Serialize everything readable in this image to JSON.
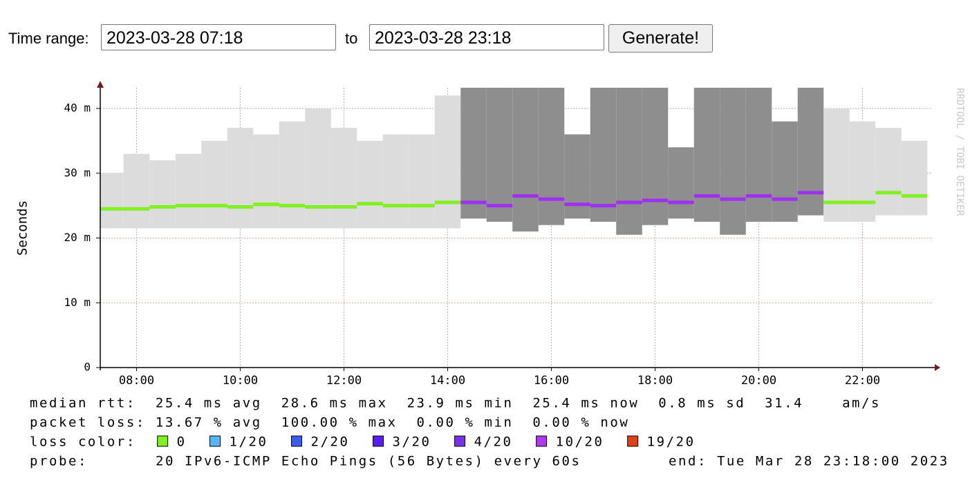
{
  "form": {
    "label": "Time range:",
    "start": "2023-03-28 07:18",
    "to": "to",
    "end": "2023-03-28 23:18",
    "button": "Generate!"
  },
  "chart_data": {
    "type": "smoke",
    "ylabel": "Seconds",
    "watermark": "RRDTOOL / TOBI OETIKER",
    "xlim": [
      7.3,
      23.3
    ],
    "xticks": [
      {
        "value": 8,
        "label": "08:00"
      },
      {
        "value": 10,
        "label": "10:00"
      },
      {
        "value": 12,
        "label": "12:00"
      },
      {
        "value": 14,
        "label": "14:00"
      },
      {
        "value": 16,
        "label": "16:00"
      },
      {
        "value": 18,
        "label": "18:00"
      },
      {
        "value": 20,
        "label": "20:00"
      },
      {
        "value": 22,
        "label": "22:00"
      }
    ],
    "ylim": [
      0,
      0.0432
    ],
    "yticks": [
      0,
      {
        "value": 0.01,
        "label": "10 m"
      },
      {
        "value": 0.02,
        "label": "20 m"
      },
      {
        "value": 0.03,
        "label": "30 m"
      },
      {
        "value": 0.04,
        "label": "40 m"
      }
    ],
    "grid": true,
    "grid_color": "#e8a0a0",
    "x": [
      7.5,
      8,
      8.5,
      9,
      9.5,
      10,
      10.5,
      11,
      11.5,
      12,
      12.5,
      13,
      13.5,
      14,
      14.5,
      15,
      15.5,
      16,
      16.5,
      17,
      17.5,
      18,
      18.5,
      19,
      19.5,
      20,
      20.5,
      21,
      21.5,
      22,
      22.5,
      23
    ],
    "values": [
      0.0245,
      0.0245,
      0.0248,
      0.025,
      0.025,
      0.0248,
      0.0252,
      0.025,
      0.0248,
      0.0248,
      0.0253,
      0.025,
      0.025,
      0.0255,
      0.0255,
      0.025,
      0.0265,
      0.026,
      0.0252,
      0.025,
      0.0255,
      0.0258,
      0.0255,
      0.0265,
      0.026,
      0.0265,
      0.026,
      0.027,
      0.0255,
      0.0255,
      0.027,
      0.0265
    ],
    "colors": [
      "#80f020",
      "#80f020",
      "#80f020",
      "#80f020",
      "#80f020",
      "#80f020",
      "#80f020",
      "#80f020",
      "#80f020",
      "#80f020",
      "#80f020",
      "#80f020",
      "#80f020",
      "#80f020",
      "#a030f0",
      "#a030f0",
      "#a030f0",
      "#a030f0",
      "#a030f0",
      "#a030f0",
      "#a030f0",
      "#a030f0",
      "#a030f0",
      "#a030f0",
      "#a030f0",
      "#a030f0",
      "#a030f0",
      "#a030f0",
      "#80f020",
      "#80f020",
      "#80f020",
      "#80f020"
    ],
    "smoke_max": [
      0.03,
      0.033,
      0.032,
      0.033,
      0.035,
      0.037,
      0.036,
      0.038,
      0.04,
      0.037,
      0.035,
      0.036,
      0.036,
      0.042,
      0.0432,
      0.0432,
      0.0432,
      0.0432,
      0.036,
      0.0432,
      0.0432,
      0.0432,
      0.034,
      0.0432,
      0.0432,
      0.0432,
      0.038,
      0.0432,
      0.04,
      0.038,
      0.037,
      0.035
    ],
    "smoke_min": [
      0.0215,
      0.0215,
      0.0215,
      0.0215,
      0.0215,
      0.0215,
      0.0215,
      0.0215,
      0.0215,
      0.0215,
      0.0215,
      0.0215,
      0.0215,
      0.0215,
      0.023,
      0.0225,
      0.021,
      0.022,
      0.023,
      0.0225,
      0.0205,
      0.022,
      0.023,
      0.0225,
      0.0205,
      0.0225,
      0.0225,
      0.0235,
      0.0225,
      0.0225,
      0.0235,
      0.0235
    ],
    "smoke_colors": [
      "#dcdcdc",
      "#dcdcdc",
      "#dcdcdc",
      "#dcdcdc",
      "#dcdcdc",
      "#dcdcdc",
      "#dcdcdc",
      "#dcdcdc",
      "#dcdcdc",
      "#dcdcdc",
      "#dcdcdc",
      "#dcdcdc",
      "#dcdcdc",
      "#dcdcdc",
      "#8e8e8e",
      "#8e8e8e",
      "#8e8e8e",
      "#8e8e8e",
      "#8e8e8e",
      "#8e8e8e",
      "#8e8e8e",
      "#8e8e8e",
      "#8e8e8e",
      "#8e8e8e",
      "#8e8e8e",
      "#8e8e8e",
      "#8e8e8e",
      "#8e8e8e",
      "#dcdcdc",
      "#dcdcdc",
      "#dcdcdc",
      "#dcdcdc"
    ],
    "stats": [
      "median rtt:  25.4 ms avg  28.6 ms max  23.9 ms min  25.4 ms now  0.8 ms sd  31.4    am/s",
      "packet loss: 13.67 % avg  100.00 % max  0.00 % min  0.00 % now"
    ],
    "loss_label": "loss color:",
    "loss_colors": [
      {
        "name": "0",
        "color": "#80f020"
      },
      {
        "name": "1/20",
        "color": "#55b8ff"
      },
      {
        "name": "2/20",
        "color": "#3c5cf0"
      },
      {
        "name": "3/20",
        "color": "#5a1ef0"
      },
      {
        "name": "4/20",
        "color": "#7a30e8"
      },
      {
        "name": "10/20",
        "color": "#b038f0"
      },
      {
        "name": "19/20",
        "color": "#e04018"
      }
    ],
    "probe_label": "probe:",
    "probe": "20 IPv6-ICMP Echo Pings (56 Bytes) every 60s",
    "end": "end: Tue Mar 28 23:18:00 2023"
  }
}
